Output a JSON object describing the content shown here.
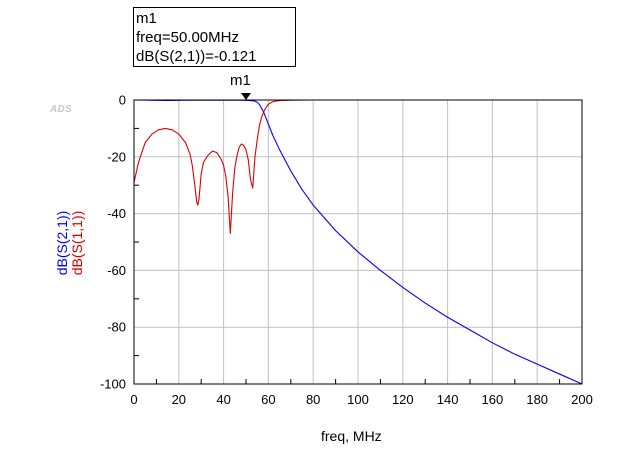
{
  "marker": {
    "name": "m1",
    "freq_line": "freq=50.00MHz",
    "value_line": "dB(S(2,1))=-0.121",
    "freq": 50.0,
    "value": -0.121
  },
  "watermark": "ADS",
  "chart_data": {
    "type": "line",
    "xlabel": "freq, MHz",
    "ylabels": [
      "dB(S(2,1))",
      "dB(S(1,1))"
    ],
    "xlim": [
      0,
      200
    ],
    "ylim": [
      -100,
      0
    ],
    "xticks": [
      0,
      20,
      40,
      60,
      80,
      100,
      120,
      140,
      160,
      180,
      200
    ],
    "yticks": [
      0,
      -20,
      -40,
      -60,
      -80,
      -100
    ],
    "grid": true,
    "series": [
      {
        "name": "dB(S(2,1))",
        "color": "#0000ff",
        "x": [
          0,
          5,
          10,
          15,
          20,
          25,
          30,
          35,
          40,
          45,
          50,
          52,
          54,
          55,
          56,
          58,
          60,
          62,
          65,
          70,
          75,
          80,
          90,
          100,
          110,
          120,
          130,
          140,
          150,
          160,
          170,
          180,
          190,
          200
        ],
        "y": [
          0,
          -0.02,
          -0.1,
          -0.15,
          -0.1,
          -0.02,
          -0.05,
          -0.02,
          -0.08,
          -0.03,
          -0.121,
          -0.2,
          -0.4,
          -0.8,
          -1.6,
          -4.5,
          -8.5,
          -12.5,
          -17.5,
          -25,
          -31.5,
          -37,
          -46,
          -53.5,
          -60,
          -66,
          -71.5,
          -76.5,
          -81,
          -85.5,
          -89.5,
          -93,
          -96.5,
          -100
        ]
      },
      {
        "name": "dB(S(1,1))",
        "color": "#dd0000",
        "x": [
          0,
          2,
          5,
          8,
          11,
          14,
          17,
          20,
          23,
          25,
          26,
          27,
          28,
          28.5,
          29,
          30,
          31,
          33,
          35,
          37,
          39,
          40,
          41,
          42,
          43,
          44,
          45,
          46,
          47,
          48,
          49,
          50,
          51,
          52,
          53,
          54,
          55,
          56,
          57,
          58,
          59,
          60,
          62,
          64,
          66,
          70,
          80,
          100,
          200
        ],
        "y": [
          -29,
          -22,
          -15,
          -12,
          -10.5,
          -10,
          -10.5,
          -12,
          -15,
          -19,
          -23,
          -29,
          -36,
          -37,
          -35,
          -26,
          -22,
          -19.5,
          -18,
          -18.5,
          -21,
          -23,
          -27,
          -34,
          -47,
          -33,
          -24,
          -19.5,
          -16.5,
          -15.5,
          -16,
          -17.5,
          -21,
          -28,
          -31,
          -20,
          -14,
          -9,
          -6,
          -4,
          -2.5,
          -1.5,
          -0.6,
          -0.3,
          -0.15,
          -0.05,
          0,
          0,
          0
        ]
      }
    ]
  }
}
